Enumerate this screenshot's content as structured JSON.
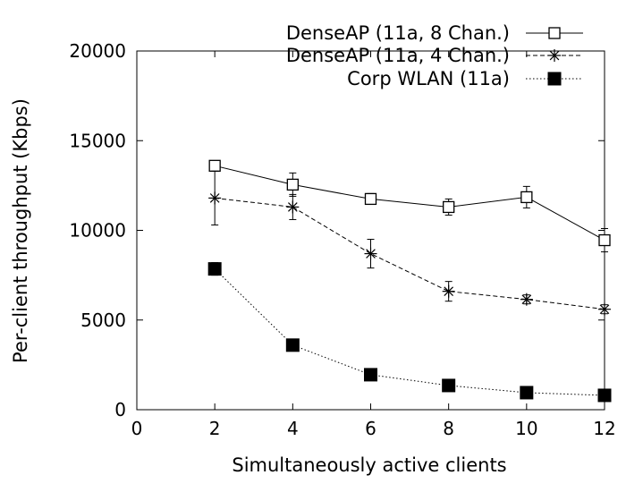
{
  "chart_data": {
    "type": "line",
    "xlabel": "Simultaneously active clients",
    "ylabel": "Per-client throughput (Kbps)",
    "xlim": [
      0,
      12
    ],
    "ylim": [
      0,
      20000
    ],
    "x_ticks": [
      "0",
      "2",
      "4",
      "6",
      "8",
      "10",
      "12"
    ],
    "y_ticks": [
      "0",
      "5000",
      "10000",
      "15000",
      "20000"
    ],
    "grid": false,
    "legend_position": "top-right",
    "series": [
      {
        "name": "DenseAP (11a, 8 Chan.)",
        "line_style": "solid",
        "marker": "open-square",
        "color": "#000000",
        "x": [
          2,
          4,
          6,
          8,
          10,
          12
        ],
        "y": [
          13600,
          12550,
          11750,
          11300,
          11850,
          9450
        ],
        "err": [
          250,
          650,
          300,
          450,
          600,
          650
        ]
      },
      {
        "name": "DenseAP (11a, 4 Chan.)",
        "line_style": "dashed",
        "marker": "asterisk",
        "color": "#000000",
        "x": [
          2,
          4,
          6,
          8,
          10,
          12
        ],
        "y": [
          11800,
          11300,
          8700,
          6600,
          6150,
          5600
        ],
        "err": [
          1500,
          700,
          800,
          550,
          250,
          250
        ]
      },
      {
        "name": "Corp WLAN (11a)",
        "line_style": "dotted",
        "marker": "filled-square",
        "color": "#000000",
        "x": [
          2,
          4,
          6,
          8,
          10,
          12
        ],
        "y": [
          7850,
          3600,
          1950,
          1350,
          950,
          800
        ],
        "err": [
          350,
          100,
          100,
          50,
          50,
          50
        ]
      }
    ]
  }
}
